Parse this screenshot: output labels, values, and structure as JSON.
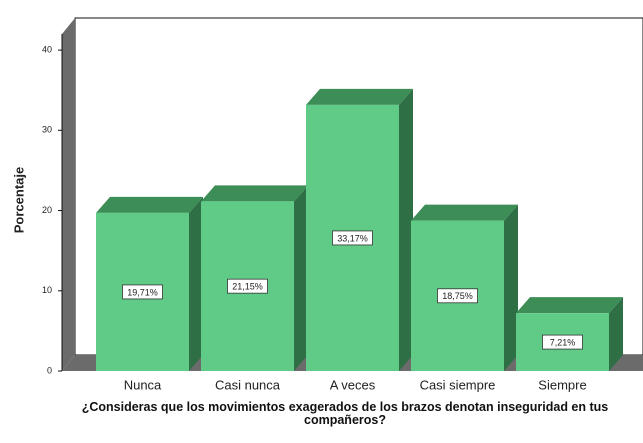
{
  "chart_data": {
    "type": "bar3d",
    "y_label": "Porcentaje",
    "x_label": "¿Consideras que los movimientos exagerados de los brazos denotan inseguridad en tus compañeros?",
    "categories": [
      "Nunca",
      "Casi nunca",
      "A veces",
      "Casi siempre",
      "Siempre"
    ],
    "values": [
      19.71,
      21.15,
      33.17,
      18.75,
      7.21
    ],
    "value_labels": [
      "19,71%",
      "21,15%",
      "33,17%",
      "18,75%",
      "7,21%"
    ],
    "color": "#5fcb86",
    "ylim": [
      0,
      44
    ],
    "yticks": [
      0,
      10,
      20,
      30,
      40
    ]
  }
}
